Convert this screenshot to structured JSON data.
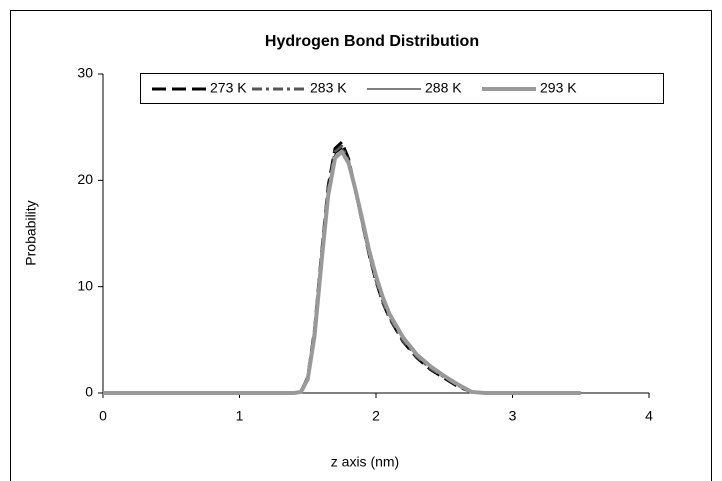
{
  "chart_data": {
    "type": "line",
    "title": "Hydrogen Bond Distribution",
    "x_label": "z axis (nm)",
    "y_label": "Probability",
    "x": [
      0,
      0.5,
      1.0,
      1.4,
      1.45,
      1.5,
      1.55,
      1.6,
      1.65,
      1.7,
      1.75,
      1.8,
      1.85,
      1.9,
      1.95,
      2.0,
      2.05,
      2.1,
      2.2,
      2.3,
      2.4,
      2.5,
      2.6,
      2.7,
      2.8,
      3.0,
      3.5
    ],
    "series": [
      {
        "name": "273 K",
        "color": "#000000",
        "values": [
          0,
          0,
          0,
          0,
          0.1,
          1.5,
          6,
          13,
          19.5,
          23,
          23.6,
          22,
          19,
          16,
          13,
          10.5,
          8.5,
          7,
          4.8,
          3.3,
          2.2,
          1.4,
          0.6,
          0.1,
          0,
          0,
          0
        ]
      },
      {
        "name": "283 K",
        "color": "#555555",
        "values": [
          0,
          0,
          0,
          0,
          0.1,
          1.4,
          5.8,
          12.8,
          19.2,
          22.7,
          23.2,
          21.8,
          19,
          16,
          13.1,
          10.6,
          8.6,
          7.1,
          4.9,
          3.4,
          2.3,
          1.5,
          0.7,
          0.1,
          0,
          0,
          0
        ]
      },
      {
        "name": "288 K",
        "color": "#000000",
        "values": [
          0,
          0,
          0,
          0,
          0.1,
          1.3,
          5.6,
          12.5,
          19,
          22.5,
          23,
          21.7,
          19,
          16.1,
          13.2,
          10.8,
          8.8,
          7.2,
          5,
          3.5,
          2.4,
          1.5,
          0.7,
          0.1,
          0,
          0,
          0
        ]
      },
      {
        "name": "293 K",
        "color": "#999999",
        "values": [
          0,
          0,
          0,
          0,
          0.1,
          1.3,
          5.4,
          12.2,
          18.6,
          22.1,
          22.7,
          21.6,
          19.1,
          16.3,
          13.4,
          11,
          9,
          7.4,
          5.2,
          3.6,
          2.5,
          1.6,
          0.8,
          0.1,
          0,
          0,
          0
        ]
      }
    ],
    "xlim": [
      0,
      4
    ],
    "xticks": [
      0,
      1,
      2,
      3,
      4
    ],
    "ylim": [
      0,
      30
    ],
    "yticks": [
      0,
      10,
      20,
      30
    ],
    "grid": false,
    "legend": "top"
  }
}
